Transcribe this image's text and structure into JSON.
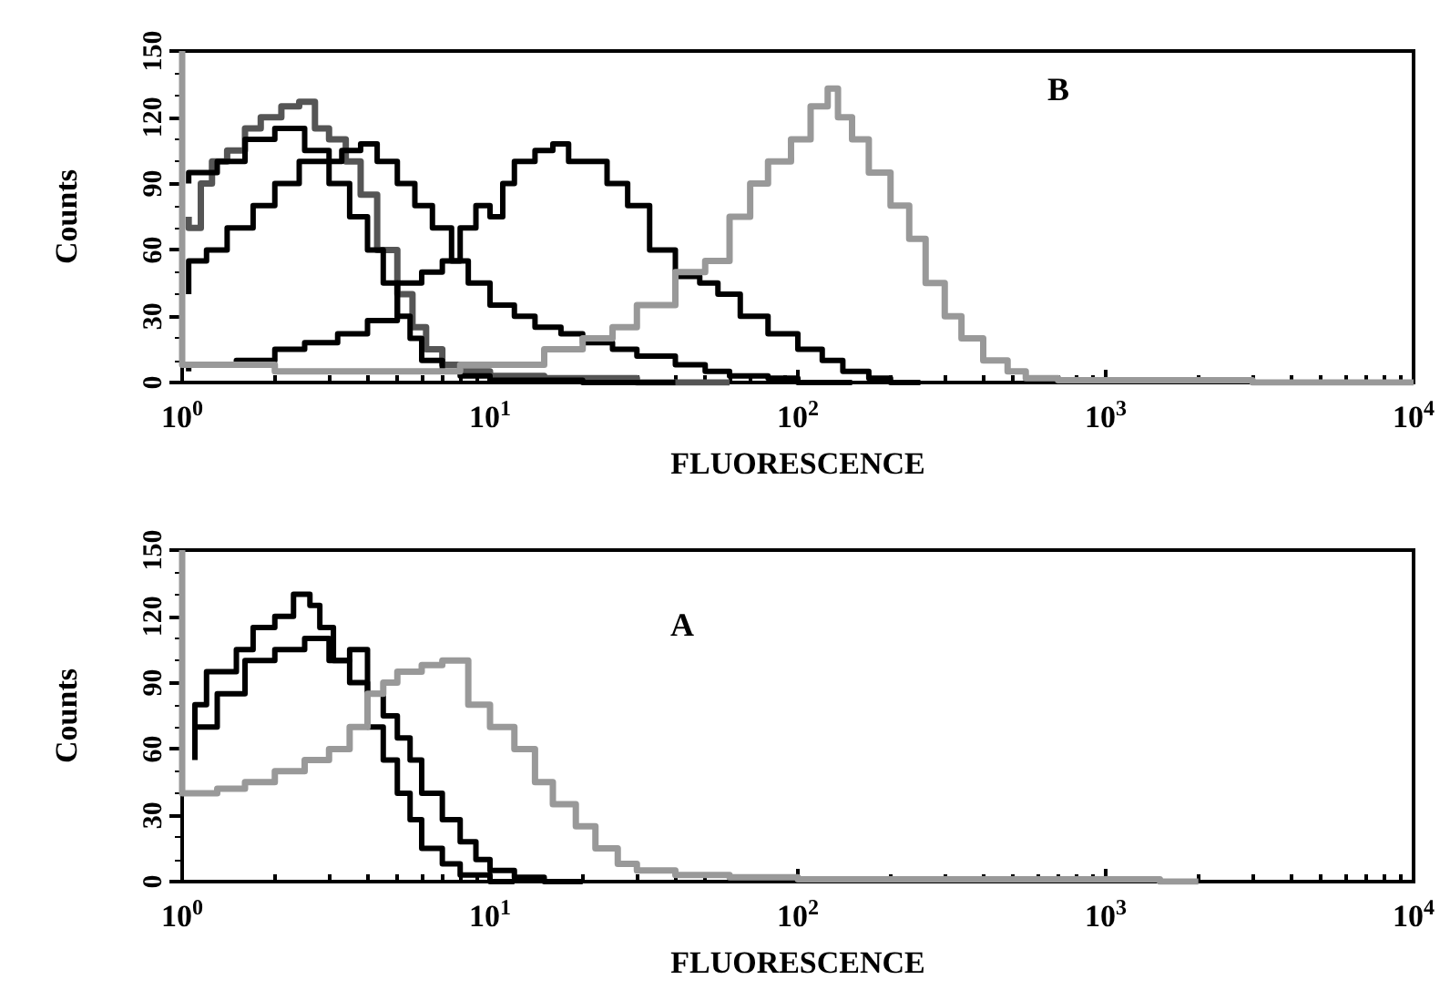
{
  "chart_data": [
    {
      "type": "step",
      "annotations": [
        "B"
      ],
      "xlabel": "FLUORESCENCE",
      "ylabel": "Counts",
      "log": "x",
      "xlim": [
        1,
        10000
      ],
      "ylim": [
        0,
        150
      ],
      "xticks": [
        {
          "value": 1,
          "label": "10$^{0}$"
        },
        {
          "value": 10,
          "label": "10$^{1}$"
        },
        {
          "value": 100,
          "label": "10$^{2}$"
        },
        {
          "value": 1000,
          "label": "10$^{3}$"
        },
        {
          "value": 10000,
          "label": "10$^{4}$"
        }
      ],
      "yticks": [
        0,
        30,
        60,
        90,
        120,
        150
      ],
      "grid": false,
      "series": [
        {
          "color": "#555555",
          "x": [
            1.05,
            1.15,
            1.25,
            1.4,
            1.6,
            1.8,
            2.1,
            2.4,
            2.7,
            3.0,
            3.4,
            3.8,
            4.3,
            5.0,
            5.6,
            6.2,
            7,
            8,
            10,
            15,
            30,
            60
          ],
          "values": [
            75,
            70,
            90,
            100,
            105,
            115,
            120,
            125,
            127,
            115,
            110,
            100,
            85,
            60,
            40,
            25,
            15,
            8,
            5,
            3,
            2,
            0
          ]
        },
        {
          "color": "#000000",
          "x": [
            1.05,
            1.3,
            1.6,
            2,
            2.5,
            3,
            3.5,
            4,
            4.5,
            5,
            5.5,
            6,
            7,
            8,
            10,
            20,
            40
          ],
          "values": [
            90,
            95,
            100,
            110,
            115,
            105,
            90,
            75,
            60,
            45,
            30,
            20,
            10,
            5,
            3,
            1,
            0
          ]
        },
        {
          "color": "#000000",
          "x": [
            1.05,
            1.2,
            1.4,
            1.7,
            2,
            2.4,
            2.8,
            3.3,
            3.8,
            4.3,
            5,
            5.7,
            6.5,
            7.5,
            8.5,
            10,
            12,
            14,
            17,
            20,
            25,
            30,
            40,
            50,
            60,
            80,
            100,
            150
          ],
          "values": [
            40,
            55,
            60,
            70,
            80,
            90,
            100,
            100,
            105,
            108,
            100,
            90,
            80,
            70,
            55,
            45,
            35,
            30,
            25,
            22,
            18,
            15,
            12,
            8,
            5,
            3,
            2,
            0
          ]
        },
        {
          "color": "#000000",
          "x": [
            1.05,
            1.5,
            2,
            2.5,
            3.2,
            4,
            5,
            6,
            7,
            8,
            9,
            10,
            11,
            12,
            14,
            16,
            18,
            20,
            24,
            28,
            33,
            40,
            48,
            55,
            65,
            80,
            100,
            120,
            140,
            170,
            200,
            250
          ],
          "values": [
            5,
            8,
            10,
            15,
            18,
            22,
            28,
            45,
            50,
            55,
            70,
            80,
            75,
            90,
            100,
            105,
            108,
            100,
            100,
            90,
            80,
            60,
            48,
            45,
            40,
            30,
            22,
            15,
            10,
            5,
            2,
            0
          ]
        },
        {
          "color": "#999999",
          "x": [
            1,
            1.05,
            2,
            4,
            8,
            15,
            20,
            25,
            30,
            40,
            50,
            60,
            70,
            80,
            95,
            110,
            125,
            135,
            150,
            170,
            200,
            230,
            260,
            300,
            340,
            400,
            480,
            550,
            700,
            1000,
            3000,
            10000
          ],
          "values": [
            150,
            8,
            8,
            5,
            5,
            8,
            15,
            20,
            25,
            35,
            50,
            55,
            75,
            90,
            100,
            110,
            125,
            133,
            120,
            110,
            95,
            80,
            65,
            45,
            30,
            20,
            10,
            5,
            2,
            1,
            1,
            0
          ]
        }
      ]
    },
    {
      "type": "step",
      "annotations": [
        "A"
      ],
      "xlabel": "FLUORESCENCE",
      "ylabel": "Counts",
      "log": "x",
      "xlim": [
        1,
        10000
      ],
      "ylim": [
        0,
        150
      ],
      "xticks": [
        {
          "value": 1,
          "label": "10$^{0}$"
        },
        {
          "value": 10,
          "label": "10$^{1}$"
        },
        {
          "value": 100,
          "label": "10$^{2}$"
        },
        {
          "value": 1000,
          "label": "10$^{3}$"
        },
        {
          "value": 10000,
          "label": "10$^{4}$"
        }
      ],
      "yticks": [
        0,
        30,
        60,
        90,
        120,
        150
      ],
      "grid": false,
      "series": [
        {
          "color": "#000000",
          "x": [
            1.1,
            1.2,
            1.3,
            1.5,
            1.7,
            2,
            2.3,
            2.6,
            2.8,
            3.1,
            3.5,
            4,
            4.5,
            5,
            5.5,
            6,
            7,
            8,
            10,
            12
          ],
          "values": [
            60,
            80,
            95,
            95,
            105,
            115,
            120,
            130,
            125,
            115,
            100,
            90,
            70,
            55,
            40,
            28,
            15,
            8,
            3,
            0
          ]
        },
        {
          "color": "#000000",
          "x": [
            1.1,
            1.3,
            1.6,
            2,
            2.5,
            3,
            3.5,
            4,
            4.5,
            5,
            5.5,
            6,
            7,
            8,
            9,
            10,
            12,
            15,
            20
          ],
          "values": [
            55,
            70,
            85,
            100,
            105,
            110,
            100,
            105,
            85,
            75,
            65,
            55,
            40,
            28,
            18,
            10,
            5,
            2,
            0
          ]
        },
        {
          "color": "#999999",
          "x": [
            1,
            1.05,
            1.3,
            1.6,
            2,
            2.5,
            3,
            3.5,
            4,
            4.5,
            5,
            6,
            7,
            8.5,
            10,
            12,
            14,
            16,
            19,
            22,
            26,
            30,
            40,
            60,
            100,
            500,
            1500,
            2000
          ],
          "values": [
            150,
            40,
            40,
            42,
            45,
            50,
            55,
            60,
            70,
            85,
            90,
            95,
            98,
            100,
            80,
            70,
            60,
            45,
            35,
            25,
            15,
            8,
            5,
            3,
            2,
            1,
            1,
            0
          ]
        }
      ]
    }
  ]
}
